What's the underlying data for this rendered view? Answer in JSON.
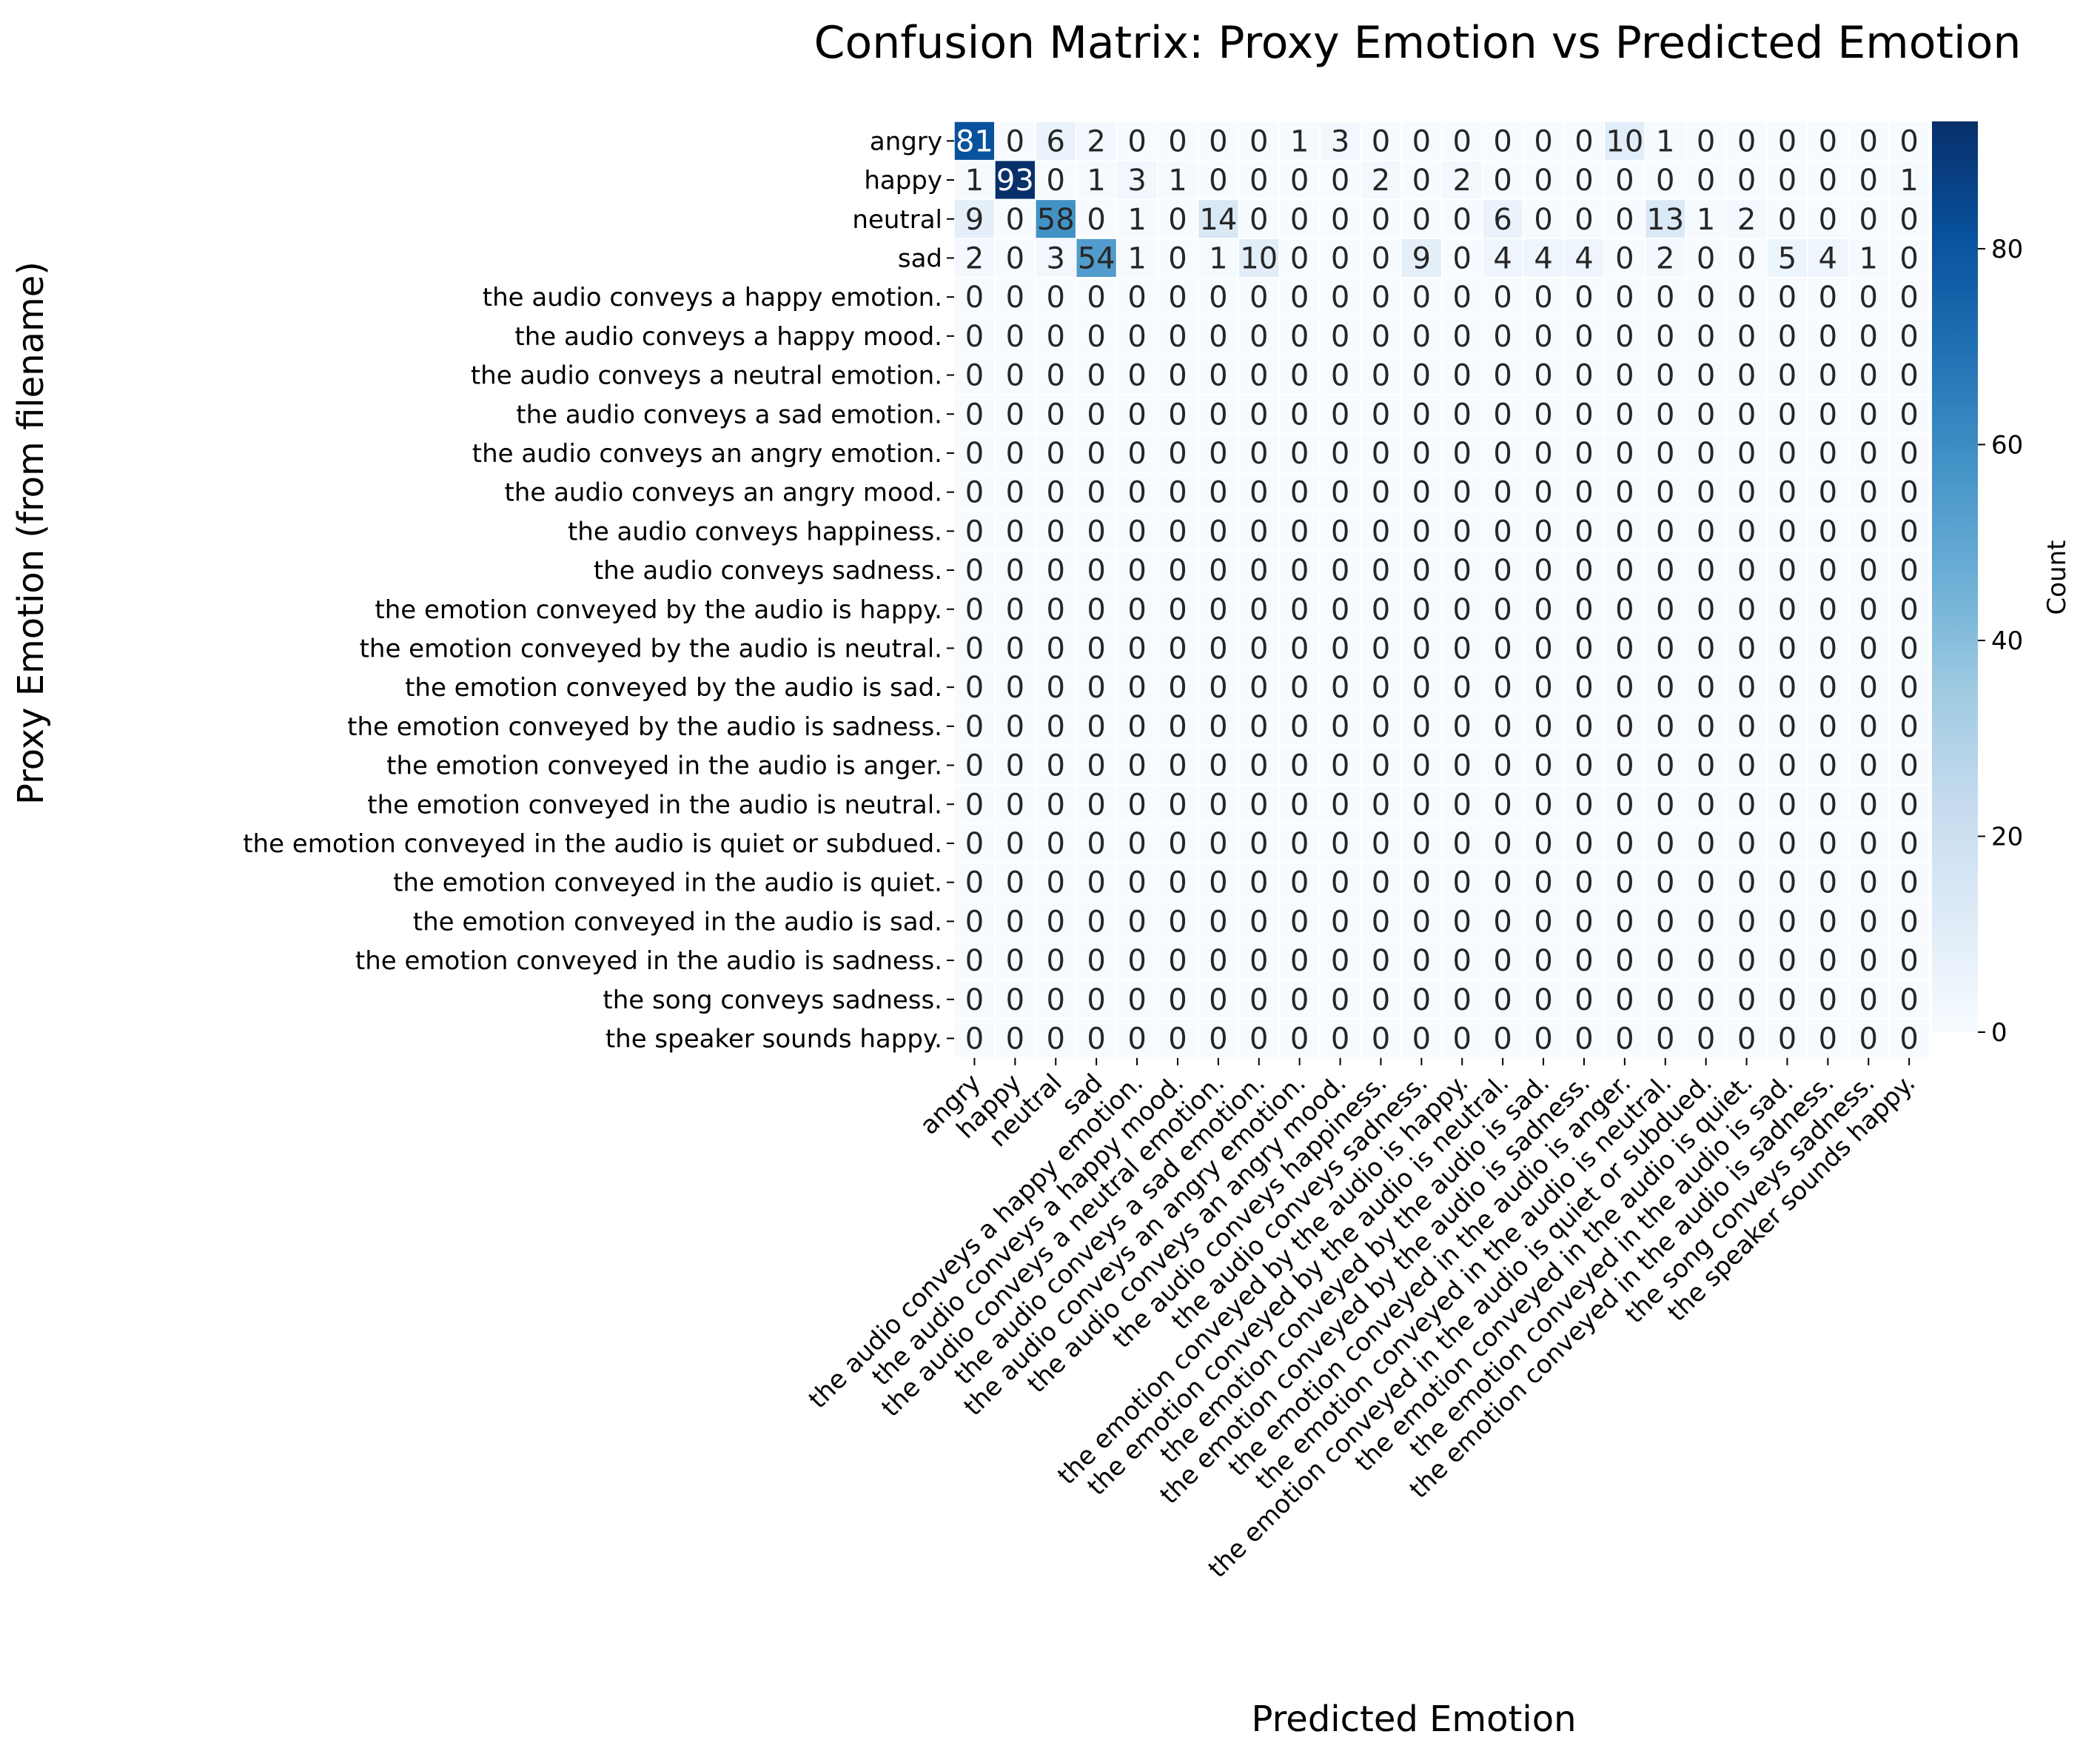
{
  "chart_data": {
    "type": "heatmap",
    "title": "Confusion Matrix: Proxy Emotion vs Predicted Emotion",
    "xlabel": "Predicted Emotion",
    "ylabel": "Proxy Emotion (from filename)",
    "colorbar_label": "Count",
    "colormap": "Blues",
    "vmin": 0,
    "vmax": 93,
    "colorbar_ticks": [
      0,
      20,
      40,
      60,
      80
    ],
    "row_labels": [
      "angry",
      "happy",
      "neutral",
      "sad",
      "the audio conveys a happy emotion.",
      "the audio conveys a happy mood.",
      "the audio conveys a neutral emotion.",
      "the audio conveys a sad emotion.",
      "the audio conveys an angry emotion.",
      "the audio conveys an angry mood.",
      "the audio conveys happiness.",
      "the audio conveys sadness.",
      "the emotion conveyed by the audio is happy.",
      "the emotion conveyed by the audio is neutral.",
      "the emotion conveyed by the audio is sad.",
      "the emotion conveyed by the audio is sadness.",
      "the emotion conveyed in the audio is anger.",
      "the emotion conveyed in the audio is neutral.",
      "the emotion conveyed in the audio is quiet or subdued.",
      "the emotion conveyed in the audio is quiet.",
      "the emotion conveyed in the audio is sad.",
      "the emotion conveyed in the audio is sadness.",
      "the song conveys sadness.",
      "the speaker sounds happy."
    ],
    "col_labels": [
      "angry",
      "happy",
      "neutral",
      "sad",
      "the audio conveys a happy emotion.",
      "the audio conveys a happy mood.",
      "the audio conveys a neutral emotion.",
      "the audio conveys a sad emotion.",
      "the audio conveys an angry emotion.",
      "the audio conveys an angry mood.",
      "the audio conveys happiness.",
      "the audio conveys sadness.",
      "the emotion conveyed by the audio is happy.",
      "the emotion conveyed by the audio is neutral.",
      "the emotion conveyed by the audio is sad.",
      "the emotion conveyed by the audio is sadness.",
      "the emotion conveyed in the audio is anger.",
      "the emotion conveyed in the audio is neutral.",
      "the emotion conveyed in the audio is quiet or subdued.",
      "the emotion conveyed in the audio is quiet.",
      "the emotion conveyed in the audio is sad.",
      "the emotion conveyed in the audio is sadness.",
      "the song conveys sadness.",
      "the speaker sounds happy."
    ],
    "matrix": [
      [
        81,
        0,
        6,
        2,
        0,
        0,
        0,
        0,
        1,
        3,
        0,
        0,
        0,
        0,
        0,
        0,
        10,
        1,
        0,
        0,
        0,
        0,
        0,
        0
      ],
      [
        1,
        93,
        0,
        1,
        3,
        1,
        0,
        0,
        0,
        0,
        2,
        0,
        2,
        0,
        0,
        0,
        0,
        0,
        0,
        0,
        0,
        0,
        0,
        1
      ],
      [
        9,
        0,
        58,
        0,
        1,
        0,
        14,
        0,
        0,
        0,
        0,
        0,
        0,
        6,
        0,
        0,
        0,
        13,
        1,
        2,
        0,
        0,
        0,
        0
      ],
      [
        2,
        0,
        3,
        54,
        1,
        0,
        1,
        10,
        0,
        0,
        0,
        9,
        0,
        4,
        4,
        4,
        0,
        2,
        0,
        0,
        5,
        4,
        1,
        0
      ],
      [
        0,
        0,
        0,
        0,
        0,
        0,
        0,
        0,
        0,
        0,
        0,
        0,
        0,
        0,
        0,
        0,
        0,
        0,
        0,
        0,
        0,
        0,
        0,
        0
      ],
      [
        0,
        0,
        0,
        0,
        0,
        0,
        0,
        0,
        0,
        0,
        0,
        0,
        0,
        0,
        0,
        0,
        0,
        0,
        0,
        0,
        0,
        0,
        0,
        0
      ],
      [
        0,
        0,
        0,
        0,
        0,
        0,
        0,
        0,
        0,
        0,
        0,
        0,
        0,
        0,
        0,
        0,
        0,
        0,
        0,
        0,
        0,
        0,
        0,
        0
      ],
      [
        0,
        0,
        0,
        0,
        0,
        0,
        0,
        0,
        0,
        0,
        0,
        0,
        0,
        0,
        0,
        0,
        0,
        0,
        0,
        0,
        0,
        0,
        0,
        0
      ],
      [
        0,
        0,
        0,
        0,
        0,
        0,
        0,
        0,
        0,
        0,
        0,
        0,
        0,
        0,
        0,
        0,
        0,
        0,
        0,
        0,
        0,
        0,
        0,
        0
      ],
      [
        0,
        0,
        0,
        0,
        0,
        0,
        0,
        0,
        0,
        0,
        0,
        0,
        0,
        0,
        0,
        0,
        0,
        0,
        0,
        0,
        0,
        0,
        0,
        0
      ],
      [
        0,
        0,
        0,
        0,
        0,
        0,
        0,
        0,
        0,
        0,
        0,
        0,
        0,
        0,
        0,
        0,
        0,
        0,
        0,
        0,
        0,
        0,
        0,
        0
      ],
      [
        0,
        0,
        0,
        0,
        0,
        0,
        0,
        0,
        0,
        0,
        0,
        0,
        0,
        0,
        0,
        0,
        0,
        0,
        0,
        0,
        0,
        0,
        0,
        0
      ],
      [
        0,
        0,
        0,
        0,
        0,
        0,
        0,
        0,
        0,
        0,
        0,
        0,
        0,
        0,
        0,
        0,
        0,
        0,
        0,
        0,
        0,
        0,
        0,
        0
      ],
      [
        0,
        0,
        0,
        0,
        0,
        0,
        0,
        0,
        0,
        0,
        0,
        0,
        0,
        0,
        0,
        0,
        0,
        0,
        0,
        0,
        0,
        0,
        0,
        0
      ],
      [
        0,
        0,
        0,
        0,
        0,
        0,
        0,
        0,
        0,
        0,
        0,
        0,
        0,
        0,
        0,
        0,
        0,
        0,
        0,
        0,
        0,
        0,
        0,
        0
      ],
      [
        0,
        0,
        0,
        0,
        0,
        0,
        0,
        0,
        0,
        0,
        0,
        0,
        0,
        0,
        0,
        0,
        0,
        0,
        0,
        0,
        0,
        0,
        0,
        0
      ],
      [
        0,
        0,
        0,
        0,
        0,
        0,
        0,
        0,
        0,
        0,
        0,
        0,
        0,
        0,
        0,
        0,
        0,
        0,
        0,
        0,
        0,
        0,
        0,
        0
      ],
      [
        0,
        0,
        0,
        0,
        0,
        0,
        0,
        0,
        0,
        0,
        0,
        0,
        0,
        0,
        0,
        0,
        0,
        0,
        0,
        0,
        0,
        0,
        0,
        0
      ],
      [
        0,
        0,
        0,
        0,
        0,
        0,
        0,
        0,
        0,
        0,
        0,
        0,
        0,
        0,
        0,
        0,
        0,
        0,
        0,
        0,
        0,
        0,
        0,
        0
      ],
      [
        0,
        0,
        0,
        0,
        0,
        0,
        0,
        0,
        0,
        0,
        0,
        0,
        0,
        0,
        0,
        0,
        0,
        0,
        0,
        0,
        0,
        0,
        0,
        0
      ],
      [
        0,
        0,
        0,
        0,
        0,
        0,
        0,
        0,
        0,
        0,
        0,
        0,
        0,
        0,
        0,
        0,
        0,
        0,
        0,
        0,
        0,
        0,
        0,
        0
      ],
      [
        0,
        0,
        0,
        0,
        0,
        0,
        0,
        0,
        0,
        0,
        0,
        0,
        0,
        0,
        0,
        0,
        0,
        0,
        0,
        0,
        0,
        0,
        0,
        0
      ],
      [
        0,
        0,
        0,
        0,
        0,
        0,
        0,
        0,
        0,
        0,
        0,
        0,
        0,
        0,
        0,
        0,
        0,
        0,
        0,
        0,
        0,
        0,
        0,
        0
      ],
      [
        0,
        0,
        0,
        0,
        0,
        0,
        0,
        0,
        0,
        0,
        0,
        0,
        0,
        0,
        0,
        0,
        0,
        0,
        0,
        0,
        0,
        0,
        0,
        0
      ]
    ]
  }
}
